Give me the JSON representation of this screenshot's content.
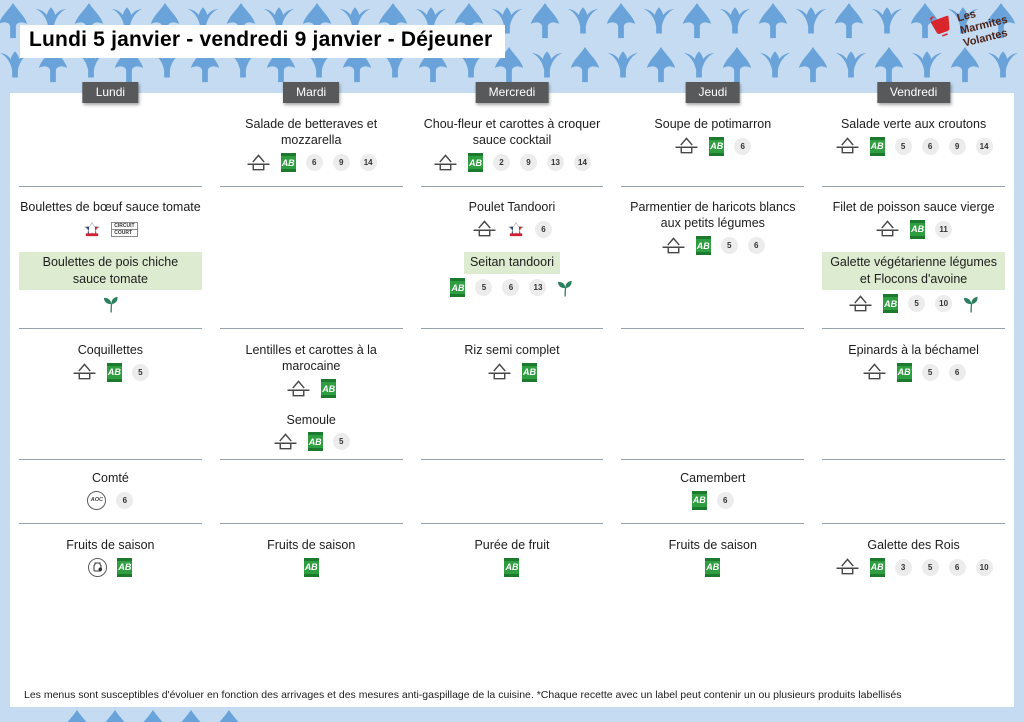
{
  "page": {
    "title": "Lundi 5 janvier - vendredi 9 janvier  - Déjeuner"
  },
  "logo": {
    "lines": [
      "Les",
      "Marmites",
      "Volantes"
    ]
  },
  "footer": {
    "note": "Les menus sont susceptibles d'évoluer en fonction des arrivages et des mesures anti-gaspillage de la cuisine. *Chaque recette avec un label peut contenir un ou plusieurs produits labellisés"
  },
  "colors": {
    "background": "#c4dbf1",
    "pattern_blue": "#69a3d9",
    "panel": "#ffffff",
    "day_label_bg": "#58595a",
    "separator": "#97a1ab",
    "text": "#1d1d1d",
    "highlight_green": "#ddecd0",
    "ab_green": "#2f9e41",
    "allergen_bg": "#ececec",
    "sprout_green": "#2c7f5f",
    "logo_red": "#d9262c"
  },
  "icon_legend": {
    "fait-maison": "fait maison",
    "ab": "agriculture biologique",
    "sprout": "plat végétarien",
    "viande-francaise": "viande française",
    "volaille-francaise": "volaille française",
    "circuit-court": "circuit court",
    "aoc": "AOC",
    "local": "produit local",
    "allergen": "numéro d'allergène"
  },
  "days": [
    {
      "label": "Lundi",
      "rows": [
        {
          "items": []
        },
        {
          "items": [
            {
              "name": "Boulettes de bœuf sauce tomate",
              "badges": [
                "viande-francaise",
                "circuit-court"
              ],
              "allergens": [],
              "sprout": false,
              "highlight": false
            },
            {
              "name": "Boulettes de pois chiche sauce tomate",
              "badges": [],
              "allergens": [],
              "sprout": true,
              "highlight": true
            }
          ]
        },
        {
          "items": [
            {
              "name": "Coquillettes",
              "badges": [
                "fait-maison",
                "ab"
              ],
              "allergens": [
                5
              ],
              "sprout": false,
              "highlight": false
            }
          ]
        },
        {
          "items": [
            {
              "name": "Comté",
              "badges": [
                "aoc"
              ],
              "allergens": [
                6
              ],
              "sprout": false,
              "highlight": false
            }
          ]
        },
        {
          "items": [
            {
              "name": "Fruits de saison",
              "badges": [
                "local",
                "ab"
              ],
              "allergens": [],
              "sprout": false,
              "highlight": false
            }
          ]
        }
      ]
    },
    {
      "label": "Mardi",
      "rows": [
        {
          "items": [
            {
              "name": "Salade de betteraves et mozzarella",
              "badges": [
                "fait-maison",
                "ab"
              ],
              "allergens": [
                6,
                9,
                14
              ],
              "sprout": false,
              "highlight": false
            }
          ]
        },
        {
          "items": []
        },
        {
          "items": [
            {
              "name": "Lentilles et carottes à la marocaine",
              "badges": [
                "fait-maison",
                "ab"
              ],
              "allergens": [],
              "sprout": false,
              "highlight": false
            },
            {
              "name": "Semoule",
              "badges": [
                "fait-maison",
                "ab"
              ],
              "allergens": [
                5
              ],
              "sprout": false,
              "highlight": false
            }
          ]
        },
        {
          "items": []
        },
        {
          "items": [
            {
              "name": "Fruits de saison",
              "badges": [
                "ab"
              ],
              "allergens": [],
              "sprout": false,
              "highlight": false
            }
          ]
        }
      ]
    },
    {
      "label": "Mercredi",
      "rows": [
        {
          "items": [
            {
              "name": "Chou-fleur et carottes à croquer sauce cocktail",
              "badges": [
                "fait-maison",
                "ab"
              ],
              "allergens": [
                2,
                9,
                13,
                14
              ],
              "sprout": false,
              "highlight": false
            }
          ]
        },
        {
          "items": [
            {
              "name": "Poulet Tandoori",
              "badges": [
                "fait-maison",
                "volaille-francaise"
              ],
              "allergens": [
                6
              ],
              "sprout": false,
              "highlight": false
            },
            {
              "name": "Seitan tandoori",
              "badges": [
                "ab"
              ],
              "allergens": [
                5,
                6,
                13
              ],
              "sprout": true,
              "highlight": true
            }
          ]
        },
        {
          "items": [
            {
              "name": "Riz semi complet",
              "badges": [
                "fait-maison",
                "ab"
              ],
              "allergens": [],
              "sprout": false,
              "highlight": false
            }
          ]
        },
        {
          "items": []
        },
        {
          "items": [
            {
              "name": "Purée de fruit",
              "badges": [
                "ab"
              ],
              "allergens": [],
              "sprout": false,
              "highlight": false
            }
          ]
        }
      ]
    },
    {
      "label": "Jeudi",
      "rows": [
        {
          "items": [
            {
              "name": "Soupe de potimarron",
              "badges": [
                "fait-maison",
                "ab"
              ],
              "allergens": [
                6
              ],
              "sprout": false,
              "highlight": false
            }
          ]
        },
        {
          "items": [
            {
              "name": "Parmentier de haricots blancs aux petits légumes",
              "badges": [
                "fait-maison",
                "ab"
              ],
              "allergens": [
                5,
                6
              ],
              "sprout": false,
              "highlight": false
            }
          ]
        },
        {
          "items": []
        },
        {
          "items": [
            {
              "name": "Camembert",
              "badges": [
                "ab"
              ],
              "allergens": [
                6
              ],
              "sprout": false,
              "highlight": false
            }
          ]
        },
        {
          "items": [
            {
              "name": "Fruits de saison",
              "badges": [
                "ab"
              ],
              "allergens": [],
              "sprout": false,
              "highlight": false
            }
          ]
        }
      ]
    },
    {
      "label": "Vendredi",
      "rows": [
        {
          "items": [
            {
              "name": "Salade verte aux croutons",
              "badges": [
                "fait-maison",
                "ab"
              ],
              "allergens": [
                5,
                6,
                9,
                14
              ],
              "sprout": false,
              "highlight": false
            }
          ]
        },
        {
          "items": [
            {
              "name": "Filet de poisson sauce vierge",
              "badges": [
                "fait-maison",
                "ab"
              ],
              "allergens": [
                11
              ],
              "sprout": false,
              "highlight": false
            },
            {
              "name": "Galette végétarienne légumes et Flocons d'avoine",
              "badges": [
                "fait-maison",
                "ab"
              ],
              "allergens": [
                5,
                10
              ],
              "sprout": true,
              "highlight": true
            }
          ]
        },
        {
          "items": [
            {
              "name": "Epinards à la béchamel",
              "badges": [
                "fait-maison",
                "ab"
              ],
              "allergens": [
                5,
                6
              ],
              "sprout": false,
              "highlight": false
            }
          ]
        },
        {
          "items": []
        },
        {
          "items": [
            {
              "name": "Galette des Rois",
              "badges": [
                "fait-maison",
                "ab"
              ],
              "allergens": [
                3,
                5,
                6,
                10
              ],
              "sprout": false,
              "highlight": false
            }
          ]
        }
      ]
    }
  ]
}
